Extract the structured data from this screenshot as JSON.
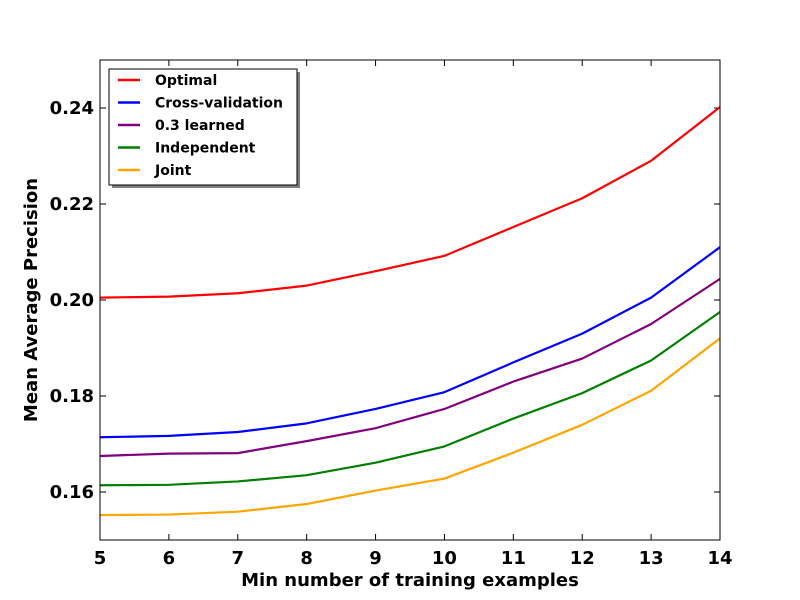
{
  "chart_data": {
    "type": "line",
    "title": "",
    "xlabel": "Min number of training examples",
    "ylabel": "Mean Average Precision",
    "x": [
      5,
      6,
      7,
      8,
      9,
      10,
      11,
      12,
      13,
      14
    ],
    "xlim": [
      5,
      14
    ],
    "ylim": [
      0.15,
      0.25
    ],
    "xticks": [
      "5",
      "6",
      "7",
      "8",
      "9",
      "10",
      "11",
      "12",
      "13",
      "14"
    ],
    "yticks": [
      "0.16",
      "0.18",
      "0.20",
      "0.22",
      "0.24"
    ],
    "ytick_values": [
      0.16,
      0.18,
      0.2,
      0.22,
      0.24
    ],
    "grid": false,
    "legend_position": "top-left",
    "series": [
      {
        "name": "Optimal",
        "color": "#ff0000",
        "values": [
          0.2005,
          0.2007,
          0.2014,
          0.203,
          0.206,
          0.2092,
          0.2152,
          0.2212,
          0.229,
          0.2402
        ]
      },
      {
        "name": "Cross-validation",
        "color": "#0000ff",
        "values": [
          0.1714,
          0.1717,
          0.1725,
          0.1743,
          0.1773,
          0.1808,
          0.187,
          0.193,
          0.2005,
          0.211
        ]
      },
      {
        "name": "0.3 learned",
        "color": "#800080",
        "values": [
          0.1675,
          0.168,
          0.1681,
          0.1706,
          0.1733,
          0.1773,
          0.183,
          0.1878,
          0.195,
          0.2044
        ]
      },
      {
        "name": "Independent",
        "color": "#008000",
        "values": [
          0.1614,
          0.1615,
          0.1622,
          0.1635,
          0.1661,
          0.1695,
          0.1753,
          0.1806,
          0.1874,
          0.1975
        ]
      },
      {
        "name": "Joint",
        "color": "#ffa500",
        "values": [
          0.1552,
          0.1553,
          0.1559,
          0.1575,
          0.1603,
          0.1628,
          0.1682,
          0.174,
          0.1811,
          0.192
        ]
      }
    ]
  }
}
